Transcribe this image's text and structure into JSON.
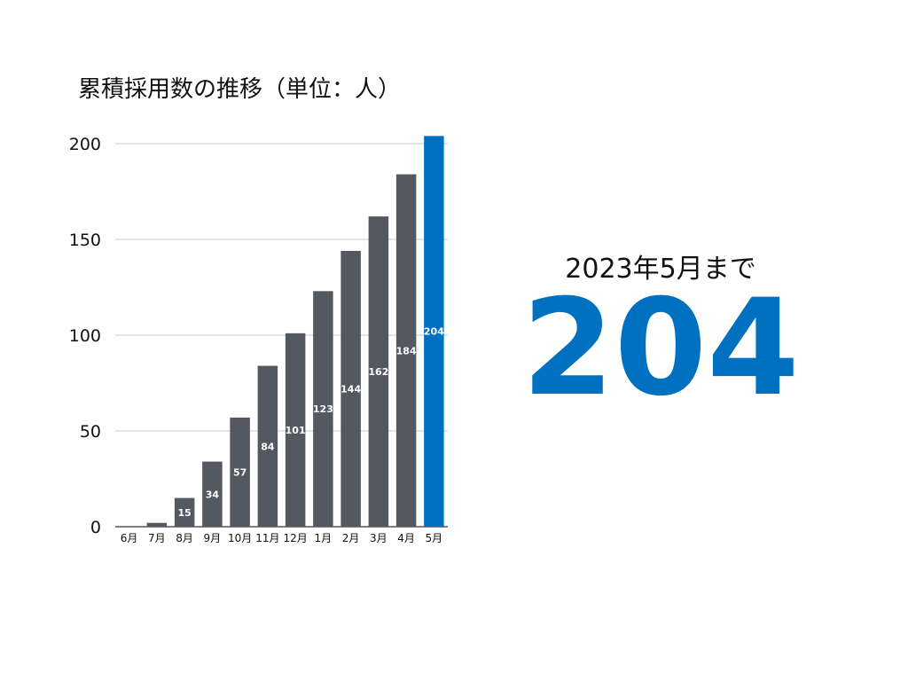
{
  "chart_data": {
    "type": "bar",
    "title": "累積採用数の推移（単位：人）",
    "categories": [
      "6月",
      "7月",
      "8月",
      "9月",
      "10月",
      "11月",
      "12月",
      "1月",
      "2月",
      "3月",
      "4月",
      "5月"
    ],
    "values": [
      0,
      2,
      15,
      34,
      57,
      84,
      101,
      123,
      144,
      162,
      184,
      204
    ],
    "data_labels": [
      "",
      "",
      "15",
      "34",
      "57",
      "84",
      "101",
      "123",
      "144",
      "162",
      "184",
      "204"
    ],
    "yticks": [
      "0",
      "50",
      "100",
      "150",
      "200"
    ],
    "ylim": [
      0,
      200
    ],
    "grid": true,
    "bar_color": "#545860",
    "highlight_color": "#0070c0",
    "highlight_index": 11
  },
  "summary": {
    "caption": "2023年5月まで",
    "value": "204"
  }
}
